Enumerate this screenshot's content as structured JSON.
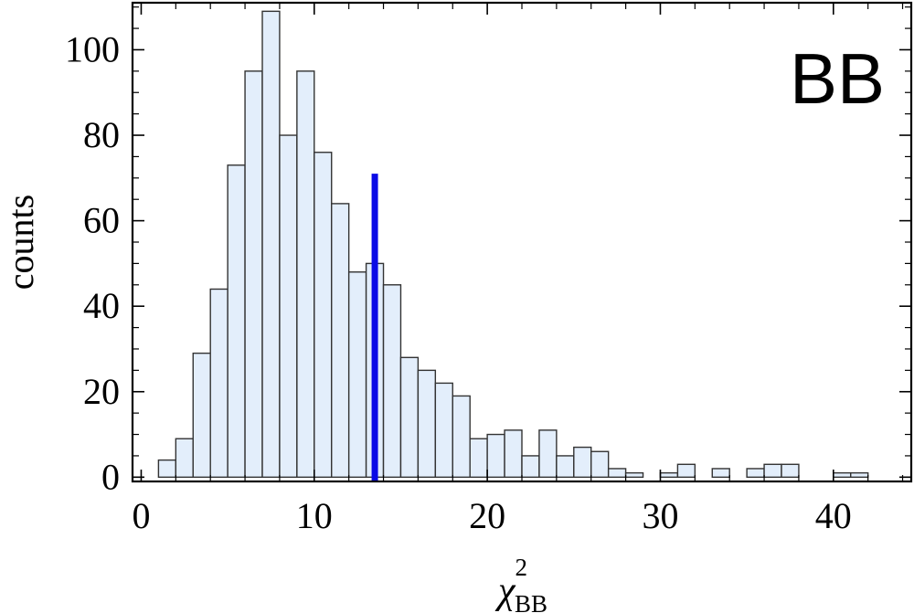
{
  "chart_data": {
    "type": "bar",
    "title": "",
    "panel_label": "BB",
    "ylabel": "counts",
    "xlabel": {
      "symbol": "χ",
      "superscript": "2",
      "subscript": "BB"
    },
    "xlim": [
      -0.5,
      44.5
    ],
    "ylim": [
      -1,
      111
    ],
    "grid": false,
    "legend": "none",
    "bin_width": 1,
    "x_ticks": [
      0,
      10,
      20,
      30,
      40
    ],
    "y_ticks": [
      0,
      20,
      40,
      60,
      80,
      100
    ],
    "x_tick_labels": [
      "0",
      "10",
      "20",
      "30",
      "40"
    ],
    "y_tick_labels": [
      "0",
      "20",
      "40",
      "60",
      "80",
      "100"
    ],
    "bins": [
      {
        "x0": 1,
        "x1": 2,
        "count": 4
      },
      {
        "x0": 2,
        "x1": 3,
        "count": 9
      },
      {
        "x0": 3,
        "x1": 4,
        "count": 29
      },
      {
        "x0": 4,
        "x1": 5,
        "count": 44
      },
      {
        "x0": 5,
        "x1": 6,
        "count": 73
      },
      {
        "x0": 6,
        "x1": 7,
        "count": 95
      },
      {
        "x0": 7,
        "x1": 8,
        "count": 109
      },
      {
        "x0": 8,
        "x1": 9,
        "count": 80
      },
      {
        "x0": 9,
        "x1": 10,
        "count": 95
      },
      {
        "x0": 10,
        "x1": 11,
        "count": 76
      },
      {
        "x0": 11,
        "x1": 12,
        "count": 64
      },
      {
        "x0": 12,
        "x1": 13,
        "count": 48
      },
      {
        "x0": 13,
        "x1": 14,
        "count": 50
      },
      {
        "x0": 14,
        "x1": 15,
        "count": 45
      },
      {
        "x0": 15,
        "x1": 16,
        "count": 28
      },
      {
        "x0": 16,
        "x1": 17,
        "count": 25
      },
      {
        "x0": 17,
        "x1": 18,
        "count": 22
      },
      {
        "x0": 18,
        "x1": 19,
        "count": 19
      },
      {
        "x0": 19,
        "x1": 20,
        "count": 9
      },
      {
        "x0": 20,
        "x1": 21,
        "count": 10
      },
      {
        "x0": 21,
        "x1": 22,
        "count": 11
      },
      {
        "x0": 22,
        "x1": 23,
        "count": 5
      },
      {
        "x0": 23,
        "x1": 24,
        "count": 11
      },
      {
        "x0": 24,
        "x1": 25,
        "count": 5
      },
      {
        "x0": 25,
        "x1": 26,
        "count": 7
      },
      {
        "x0": 26,
        "x1": 27,
        "count": 6
      },
      {
        "x0": 27,
        "x1": 28,
        "count": 2
      },
      {
        "x0": 28,
        "x1": 29,
        "count": 1
      },
      {
        "x0": 30,
        "x1": 31,
        "count": 1
      },
      {
        "x0": 31,
        "x1": 32,
        "count": 3
      },
      {
        "x0": 33,
        "x1": 34,
        "count": 2
      },
      {
        "x0": 35,
        "x1": 36,
        "count": 2
      },
      {
        "x0": 36,
        "x1": 37,
        "count": 3
      },
      {
        "x0": 37,
        "x1": 38,
        "count": 3
      },
      {
        "x0": 40,
        "x1": 41,
        "count": 1
      },
      {
        "x0": 41,
        "x1": 42,
        "count": 1
      }
    ],
    "marker_line": {
      "x": 13.5,
      "y0": 0,
      "y1": 71,
      "color": "#0a0ae6"
    },
    "bar_fill": "#e3eefb",
    "bar_stroke": "#333333"
  }
}
